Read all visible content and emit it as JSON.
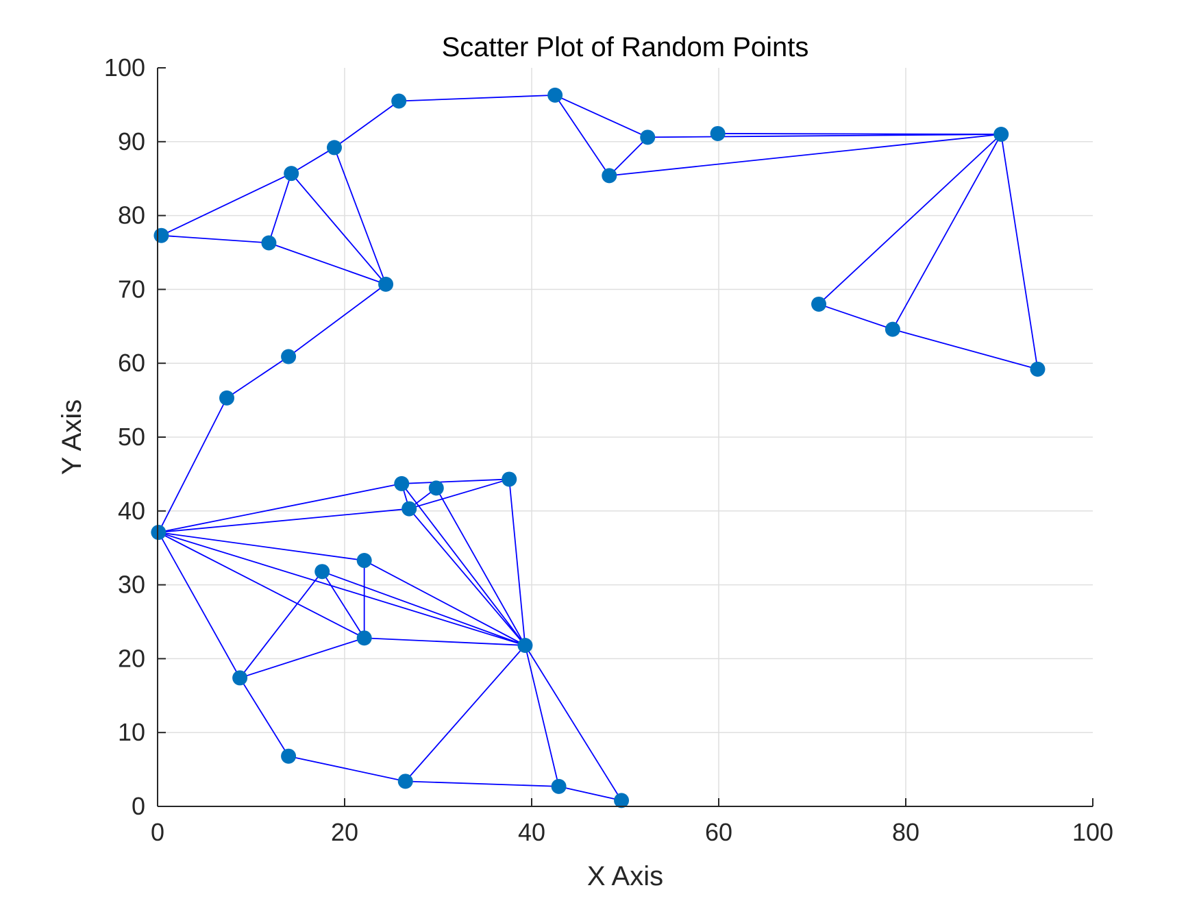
{
  "chart_data": {
    "type": "scatter",
    "title": "Scatter Plot of Random Points",
    "xlabel": "X Axis",
    "ylabel": "Y Axis",
    "xlim": [
      0,
      100
    ],
    "ylim": [
      0,
      100
    ],
    "xticks": [
      0,
      20,
      40,
      60,
      80,
      100
    ],
    "yticks": [
      0,
      10,
      20,
      30,
      40,
      50,
      60,
      70,
      80,
      90,
      100
    ],
    "xtick_labels": [
      "0",
      "20",
      "40",
      "60",
      "80",
      "100"
    ],
    "ytick_labels": [
      "0",
      "10",
      "20",
      "30",
      "40",
      "50",
      "60",
      "70",
      "80",
      "90",
      "100"
    ],
    "grid": true,
    "legend": "none",
    "marker_color": "#0072BD",
    "line_color": "#0000FF",
    "axis_color": "#262626",
    "grid_color": "#DFDFDF",
    "points": [
      {
        "id": "P1",
        "x": 0.1,
        "y": 37.1
      },
      {
        "id": "P2",
        "x": 7.4,
        "y": 55.3
      },
      {
        "id": "P3",
        "x": 14.0,
        "y": 60.9
      },
      {
        "id": "P4",
        "x": 24.4,
        "y": 70.7
      },
      {
        "id": "P5",
        "x": 11.9,
        "y": 76.3
      },
      {
        "id": "P6",
        "x": 0.4,
        "y": 77.3
      },
      {
        "id": "P7",
        "x": 14.3,
        "y": 85.7
      },
      {
        "id": "P8",
        "x": 18.9,
        "y": 89.2
      },
      {
        "id": "P9",
        "x": 25.8,
        "y": 95.5
      },
      {
        "id": "P10",
        "x": 42.5,
        "y": 96.3
      },
      {
        "id": "P11",
        "x": 52.4,
        "y": 90.6
      },
      {
        "id": "P12",
        "x": 48.3,
        "y": 85.4
      },
      {
        "id": "P13",
        "x": 59.9,
        "y": 91.1
      },
      {
        "id": "P14",
        "x": 90.2,
        "y": 91.0
      },
      {
        "id": "P15",
        "x": 70.7,
        "y": 68.0
      },
      {
        "id": "P16",
        "x": 78.6,
        "y": 64.6
      },
      {
        "id": "P17",
        "x": 94.1,
        "y": 59.2
      },
      {
        "id": "P18",
        "x": 26.1,
        "y": 43.7
      },
      {
        "id": "P19",
        "x": 29.8,
        "y": 43.1
      },
      {
        "id": "P20",
        "x": 37.6,
        "y": 44.3
      },
      {
        "id": "P21",
        "x": 26.9,
        "y": 40.3
      },
      {
        "id": "P22",
        "x": 22.1,
        "y": 33.3
      },
      {
        "id": "P23",
        "x": 17.6,
        "y": 31.8
      },
      {
        "id": "P24",
        "x": 22.1,
        "y": 22.8
      },
      {
        "id": "P25",
        "x": 39.3,
        "y": 21.8
      },
      {
        "id": "P26",
        "x": 8.8,
        "y": 17.4
      },
      {
        "id": "P27",
        "x": 14.0,
        "y": 6.8
      },
      {
        "id": "P28",
        "x": 26.5,
        "y": 3.4
      },
      {
        "id": "P29",
        "x": 42.9,
        "y": 2.7
      },
      {
        "id": "P30",
        "x": 49.6,
        "y": 0.8
      }
    ],
    "edges": [
      [
        "P1",
        "P2"
      ],
      [
        "P2",
        "P3"
      ],
      [
        "P3",
        "P4"
      ],
      [
        "P4",
        "P5"
      ],
      [
        "P5",
        "P6"
      ],
      [
        "P6",
        "P7"
      ],
      [
        "P7",
        "P4"
      ],
      [
        "P5",
        "P7"
      ],
      [
        "P7",
        "P8"
      ],
      [
        "P8",
        "P4"
      ],
      [
        "P8",
        "P9"
      ],
      [
        "P9",
        "P10"
      ],
      [
        "P10",
        "P11"
      ],
      [
        "P10",
        "P12"
      ],
      [
        "P12",
        "P11"
      ],
      [
        "P11",
        "P14"
      ],
      [
        "P12",
        "P14"
      ],
      [
        "P13",
        "P14"
      ],
      [
        "P14",
        "P15"
      ],
      [
        "P15",
        "P16"
      ],
      [
        "P16",
        "P17"
      ],
      [
        "P17",
        "P14"
      ],
      [
        "P16",
        "P14"
      ],
      [
        "P1",
        "P18"
      ],
      [
        "P18",
        "P20"
      ],
      [
        "P20",
        "P21"
      ],
      [
        "P21",
        "P1"
      ],
      [
        "P18",
        "P25"
      ],
      [
        "P19",
        "P25"
      ],
      [
        "P21",
        "P25"
      ],
      [
        "P20",
        "P25"
      ],
      [
        "P1",
        "P22"
      ],
      [
        "P22",
        "P24"
      ],
      [
        "P1",
        "P24"
      ],
      [
        "P1",
        "P25"
      ],
      [
        "P1",
        "P26"
      ],
      [
        "P26",
        "P23"
      ],
      [
        "P23",
        "P25"
      ],
      [
        "P23",
        "P24"
      ],
      [
        "P22",
        "P25"
      ],
      [
        "P26",
        "P24"
      ],
      [
        "P24",
        "P25"
      ],
      [
        "P26",
        "P27"
      ],
      [
        "P27",
        "P28"
      ],
      [
        "P28",
        "P25"
      ],
      [
        "P28",
        "P29"
      ],
      [
        "P29",
        "P30"
      ],
      [
        "P25",
        "P29"
      ],
      [
        "P25",
        "P30"
      ],
      [
        "P18",
        "P21"
      ],
      [
        "P21",
        "P19"
      ]
    ]
  }
}
